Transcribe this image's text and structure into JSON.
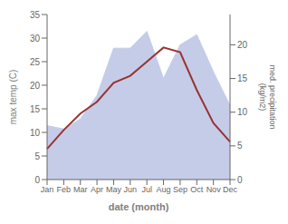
{
  "chart_data": {
    "type": "line",
    "xlabel": "date (month)",
    "ylabel": "max temp (C)",
    "y2label": "med. precipitation\n(kg/m2)",
    "categories": [
      "Jan",
      "Feb",
      "Mar",
      "Apr",
      "May",
      "Jun",
      "Jul",
      "Aug",
      "Sep",
      "Oct",
      "Nov",
      "Dec"
    ],
    "series": [
      {
        "type": "area",
        "axis": "y2",
        "color": "#c5cce8",
        "values": [
          8.0,
          7.5,
          9.0,
          12.5,
          19.5,
          19.5,
          22.0,
          15.0,
          20.0,
          21.5,
          16.0,
          11.0
        ]
      },
      {
        "type": "line",
        "color": "#993333",
        "values": [
          6.5,
          10.5,
          14.0,
          16.5,
          20.5,
          22.0,
          25.0,
          28.0,
          27.0,
          19.0,
          12.0,
          8.0
        ]
      }
    ],
    "ylim": [
      0,
      35
    ],
    "yticks": [
      0,
      5,
      10,
      15,
      20,
      25,
      30,
      35
    ],
    "y2lim": [
      0,
      24.5
    ],
    "y2ticks": [
      0,
      5,
      10,
      15,
      20
    ],
    "grid": false
  }
}
